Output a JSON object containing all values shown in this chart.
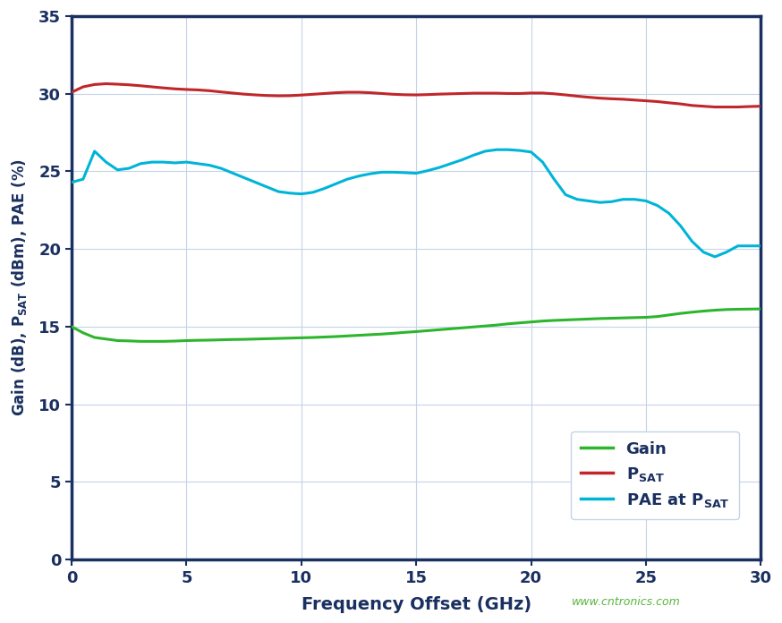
{
  "xlabel": "Frequency Offset (GHz)",
  "xlim": [
    0,
    30
  ],
  "ylim": [
    0,
    35
  ],
  "xticks": [
    0,
    5,
    10,
    15,
    20,
    25,
    30
  ],
  "yticks": [
    0,
    5,
    10,
    15,
    20,
    25,
    30,
    35
  ],
  "background_color": "#ffffff",
  "plot_background_color": "#ffffff",
  "grid_color": "#c5d3e8",
  "spine_color": "#1a3060",
  "tick_label_color": "#1a3060",
  "axis_label_color": "#1a3060",
  "legend_text_color": "#1a3060",
  "watermark_text": "www.cntronics.com",
  "watermark_color": "#5ab53c",
  "gain_color": "#2db52d",
  "psat_color": "#c0262a",
  "pae_color": "#00b4d8",
  "line_width": 2.2,
  "freq_gain": [
    0.0,
    0.5,
    1.0,
    1.5,
    2.0,
    2.5,
    3.0,
    3.5,
    4.0,
    4.5,
    5.0,
    5.5,
    6.0,
    6.5,
    7.0,
    7.5,
    8.0,
    8.5,
    9.0,
    9.5,
    10.0,
    10.5,
    11.0,
    11.5,
    12.0,
    12.5,
    13.0,
    13.5,
    14.0,
    14.5,
    15.0,
    15.5,
    16.0,
    16.5,
    17.0,
    17.5,
    18.0,
    18.5,
    19.0,
    19.5,
    20.0,
    20.5,
    21.0,
    21.5,
    22.0,
    22.5,
    23.0,
    23.5,
    24.0,
    24.5,
    25.0,
    25.5,
    26.0,
    26.5,
    27.0,
    27.5,
    28.0,
    28.5,
    29.0,
    29.5,
    30.0
  ],
  "gain_values": [
    15.0,
    14.6,
    14.3,
    14.2,
    14.1,
    14.08,
    14.05,
    14.05,
    14.05,
    14.07,
    14.1,
    14.12,
    14.13,
    14.15,
    14.17,
    14.18,
    14.2,
    14.22,
    14.24,
    14.26,
    14.28,
    14.3,
    14.33,
    14.36,
    14.4,
    14.44,
    14.48,
    14.52,
    14.57,
    14.63,
    14.68,
    14.74,
    14.8,
    14.86,
    14.92,
    14.98,
    15.04,
    15.1,
    15.18,
    15.24,
    15.3,
    15.36,
    15.4,
    15.43,
    15.46,
    15.49,
    15.52,
    15.54,
    15.56,
    15.58,
    15.6,
    15.65,
    15.75,
    15.85,
    15.93,
    16.0,
    16.06,
    16.1,
    16.12,
    16.13,
    16.14
  ],
  "freq_psat": [
    0.0,
    0.5,
    1.0,
    1.5,
    2.0,
    2.5,
    3.0,
    3.5,
    4.0,
    4.5,
    5.0,
    5.5,
    6.0,
    6.5,
    7.0,
    7.5,
    8.0,
    8.5,
    9.0,
    9.5,
    10.0,
    10.5,
    11.0,
    11.5,
    12.0,
    12.5,
    13.0,
    13.5,
    14.0,
    14.5,
    15.0,
    15.5,
    16.0,
    16.5,
    17.0,
    17.5,
    18.0,
    18.5,
    19.0,
    19.5,
    20.0,
    20.5,
    21.0,
    21.5,
    22.0,
    22.5,
    23.0,
    23.5,
    24.0,
    24.5,
    25.0,
    25.5,
    26.0,
    26.5,
    27.0,
    27.5,
    28.0,
    28.5,
    29.0,
    29.5,
    30.0
  ],
  "psat_values": [
    30.1,
    30.45,
    30.6,
    30.65,
    30.62,
    30.58,
    30.52,
    30.45,
    30.38,
    30.32,
    30.28,
    30.25,
    30.2,
    30.12,
    30.05,
    29.98,
    29.93,
    29.89,
    29.87,
    29.88,
    29.92,
    29.97,
    30.02,
    30.07,
    30.1,
    30.1,
    30.07,
    30.02,
    29.97,
    29.94,
    29.93,
    29.95,
    29.98,
    30.0,
    30.02,
    30.04,
    30.04,
    30.04,
    30.02,
    30.02,
    30.05,
    30.05,
    30.0,
    29.93,
    29.85,
    29.78,
    29.72,
    29.68,
    29.65,
    29.6,
    29.55,
    29.5,
    29.42,
    29.35,
    29.25,
    29.2,
    29.15,
    29.15,
    29.15,
    29.18,
    29.2
  ],
  "freq_pae": [
    0.0,
    0.5,
    1.0,
    1.5,
    2.0,
    2.5,
    3.0,
    3.5,
    4.0,
    4.5,
    5.0,
    5.5,
    6.0,
    6.5,
    7.0,
    7.5,
    8.0,
    8.5,
    9.0,
    9.5,
    10.0,
    10.5,
    11.0,
    11.5,
    12.0,
    12.5,
    13.0,
    13.5,
    14.0,
    14.5,
    15.0,
    15.5,
    16.0,
    16.5,
    17.0,
    17.5,
    18.0,
    18.5,
    19.0,
    19.5,
    20.0,
    20.5,
    21.0,
    21.5,
    22.0,
    22.5,
    23.0,
    23.5,
    24.0,
    24.5,
    25.0,
    25.5,
    26.0,
    26.5,
    27.0,
    27.5,
    28.0,
    28.5,
    29.0,
    29.5,
    30.0
  ],
  "pae_values": [
    24.3,
    24.5,
    26.3,
    25.6,
    25.1,
    25.2,
    25.5,
    25.6,
    25.6,
    25.55,
    25.6,
    25.5,
    25.4,
    25.2,
    24.9,
    24.6,
    24.3,
    24.0,
    23.7,
    23.6,
    23.55,
    23.65,
    23.9,
    24.2,
    24.5,
    24.7,
    24.85,
    24.95,
    24.95,
    24.92,
    24.88,
    25.05,
    25.25,
    25.5,
    25.75,
    26.05,
    26.3,
    26.4,
    26.4,
    26.35,
    26.25,
    25.6,
    24.5,
    23.5,
    23.2,
    23.1,
    23.0,
    23.05,
    23.2,
    23.2,
    23.1,
    22.8,
    22.3,
    21.5,
    20.5,
    19.8,
    19.5,
    19.8,
    20.2,
    20.2,
    20.2
  ]
}
